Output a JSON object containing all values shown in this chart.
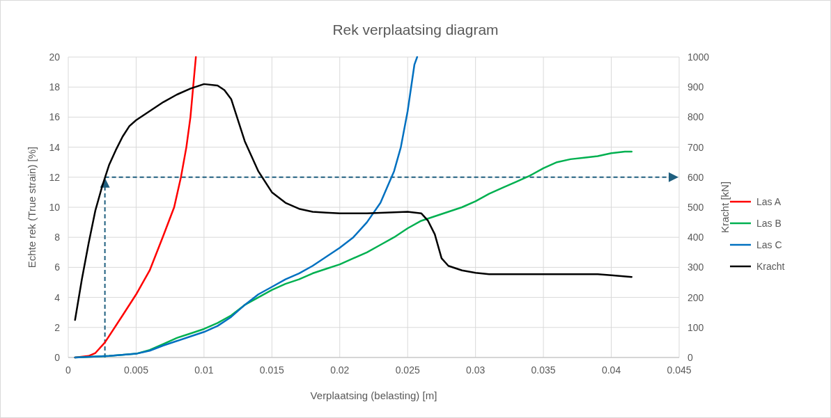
{
  "chart_data": {
    "type": "line",
    "title": "Rek verplaatsing diagram",
    "xlabel": "Verplaatsing (belasting) [m]",
    "ylabel": "Echte rek (True strain) [%]",
    "y2label": "Kracht [kN]",
    "xlim": [
      0,
      0.045
    ],
    "xticks": [
      0,
      0.005,
      0.01,
      0.015,
      0.02,
      0.025,
      0.03,
      0.035,
      0.04,
      0.045
    ],
    "ylim": [
      0,
      20
    ],
    "yticks": [
      0,
      2,
      4,
      6,
      8,
      10,
      12,
      14,
      16,
      18,
      20
    ],
    "y2lim": [
      0,
      1000
    ],
    "y2ticks": [
      0,
      100,
      200,
      300,
      400,
      500,
      600,
      700,
      800,
      900,
      1000
    ],
    "grid": true,
    "legend": "right",
    "marker": "none",
    "line_style": "solid",
    "ref_lines": [
      {
        "axis": "x",
        "value": 0.0027,
        "color": "#1f5f7f",
        "line_style": "dashed"
      },
      {
        "axis": "y2",
        "value": 600,
        "color": "#1f5f7f",
        "line_style": "dashed"
      }
    ],
    "series": [
      {
        "name": "Las A",
        "color": "#ff0000",
        "x": [
          0.0005,
          0.0015,
          0.002,
          0.0027,
          0.004,
          0.005,
          0.006,
          0.007,
          0.0078,
          0.0083,
          0.0087,
          0.009,
          0.0092,
          0.0094
        ],
        "values": [
          0,
          0.1,
          0.3,
          1.0,
          2.8,
          4.2,
          5.8,
          8.1,
          10,
          12,
          14,
          16,
          18,
          20
        ]
      },
      {
        "name": "Las B",
        "color": "#00b050",
        "x": [
          0.0005,
          0.003,
          0.005,
          0.006,
          0.007,
          0.008,
          0.009,
          0.01,
          0.011,
          0.012,
          0.013,
          0.014,
          0.015,
          0.016,
          0.017,
          0.018,
          0.019,
          0.02,
          0.021,
          0.022,
          0.023,
          0.024,
          0.025,
          0.026,
          0.027,
          0.028,
          0.029,
          0.03,
          0.031,
          0.032,
          0.033,
          0.034,
          0.035,
          0.036,
          0.037,
          0.038,
          0.039,
          0.04,
          0.041,
          0.0415
        ],
        "values": [
          0,
          0.1,
          0.25,
          0.5,
          0.9,
          1.3,
          1.6,
          1.9,
          2.3,
          2.8,
          3.5,
          4.0,
          4.5,
          4.9,
          5.2,
          5.6,
          5.9,
          6.2,
          6.6,
          7.0,
          7.5,
          8.0,
          8.6,
          9.1,
          9.4,
          9.7,
          10.0,
          10.4,
          10.9,
          11.3,
          11.7,
          12.1,
          12.6,
          13.0,
          13.2,
          13.3,
          13.4,
          13.6,
          13.7,
          13.7
        ]
      },
      {
        "name": "Las C",
        "color": "#0070c0",
        "x": [
          0.0005,
          0.003,
          0.005,
          0.006,
          0.007,
          0.008,
          0.009,
          0.01,
          0.011,
          0.012,
          0.013,
          0.014,
          0.015,
          0.016,
          0.017,
          0.018,
          0.019,
          0.02,
          0.021,
          0.022,
          0.023,
          0.024,
          0.0245,
          0.025,
          0.0255,
          0.0257
        ],
        "values": [
          0,
          0.1,
          0.25,
          0.45,
          0.8,
          1.1,
          1.4,
          1.7,
          2.1,
          2.7,
          3.5,
          4.2,
          4.7,
          5.2,
          5.6,
          6.1,
          6.7,
          7.3,
          8.0,
          9.0,
          10.3,
          12.4,
          14,
          16.4,
          19.5,
          20
        ]
      },
      {
        "name": "Kracht",
        "color": "#000000",
        "axis": "y2",
        "x": [
          0.0005,
          0.001,
          0.0015,
          0.002,
          0.0025,
          0.003,
          0.0035,
          0.004,
          0.0045,
          0.005,
          0.006,
          0.007,
          0.008,
          0.009,
          0.01,
          0.011,
          0.0115,
          0.012,
          0.013,
          0.014,
          0.015,
          0.016,
          0.017,
          0.018,
          0.019,
          0.02,
          0.022,
          0.024,
          0.025,
          0.026,
          0.0265,
          0.027,
          0.0275,
          0.028,
          0.029,
          0.03,
          0.031,
          0.035,
          0.039,
          0.04,
          0.0415
        ],
        "values": [
          125,
          260,
          380,
          490,
          570,
          640,
          690,
          735,
          770,
          790,
          820,
          850,
          875,
          895,
          910,
          905,
          890,
          860,
          720,
          620,
          550,
          515,
          495,
          485,
          482,
          480,
          480,
          483,
          485,
          480,
          455,
          410,
          330,
          305,
          290,
          282,
          277,
          277,
          277,
          274,
          268
        ]
      }
    ]
  }
}
